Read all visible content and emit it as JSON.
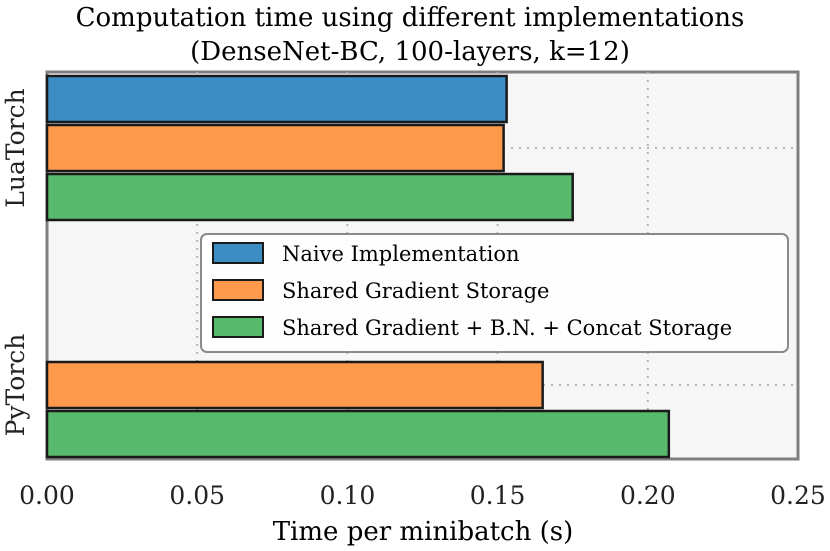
{
  "chart_data": {
    "type": "bar",
    "orientation": "horizontal",
    "title": "Computation time using different implementations",
    "subtitle": "(DenseNet-BC, 100-layers, k=12)",
    "xlabel": "Time per minibatch (s)",
    "ylabel": "",
    "xlim": [
      0,
      0.25
    ],
    "xticks": [
      "0.00",
      "0.05",
      "0.10",
      "0.15",
      "0.20",
      "0.25"
    ],
    "categories": [
      "LuaTorch",
      "PyTorch"
    ],
    "series": [
      {
        "name": "Naive Implementation",
        "color": "#3b8dc4",
        "values": [
          0.153,
          null
        ]
      },
      {
        "name": "Shared Gradient Storage",
        "color": "#ff9a4d",
        "values": [
          0.152,
          0.165
        ]
      },
      {
        "name": "Shared Gradient + B.N. + Concat Storage",
        "color": "#57b96b",
        "values": [
          0.175,
          0.207
        ]
      }
    ],
    "grid": true,
    "legend_position": "center"
  }
}
